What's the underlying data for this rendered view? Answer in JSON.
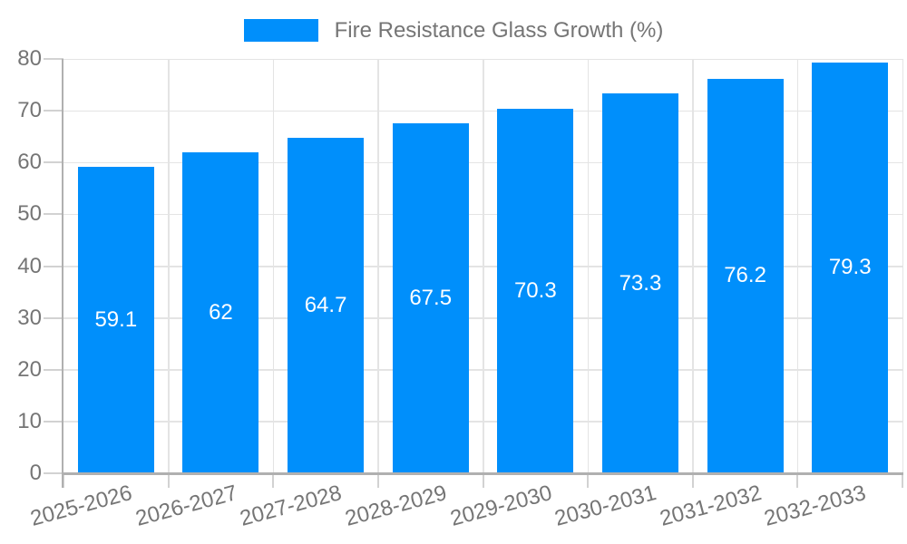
{
  "legend": {
    "label": "Fire Resistance Glass Growth (%)",
    "swatch_color": "#008FFB"
  },
  "chart_data": {
    "type": "bar",
    "title": "Fire Resistance Glass Growth (%)",
    "categories": [
      "2025-2026",
      "2026-2027",
      "2027-2028",
      "2028-2029",
      "2029-2030",
      "2030-2031",
      "2031-2032",
      "2032-2033"
    ],
    "series": [
      {
        "name": "Fire Resistance Glass Growth (%)",
        "values": [
          59.1,
          62,
          64.7,
          67.5,
          70.3,
          73.3,
          76.2,
          79.3
        ]
      }
    ],
    "data_labels": [
      "59.1",
      "62",
      "64.7",
      "67.5",
      "70.3",
      "73.3",
      "76.2",
      "79.3"
    ],
    "xlabel": "",
    "ylabel": "",
    "ylim": [
      0,
      80
    ],
    "yticks": [
      0,
      10,
      20,
      30,
      40,
      50,
      60,
      70,
      80
    ],
    "grid": true,
    "legend_position": "top",
    "x_label_rotation_deg": -15,
    "colors": {
      "bar": "#008FFB",
      "bar_label_text": "#ffffff",
      "axis_text": "#757575",
      "grid_line": "#e4e4e4",
      "tick_line": "#d2d2d2",
      "axis_line": "#b0b0b0",
      "background": "#ffffff"
    }
  }
}
